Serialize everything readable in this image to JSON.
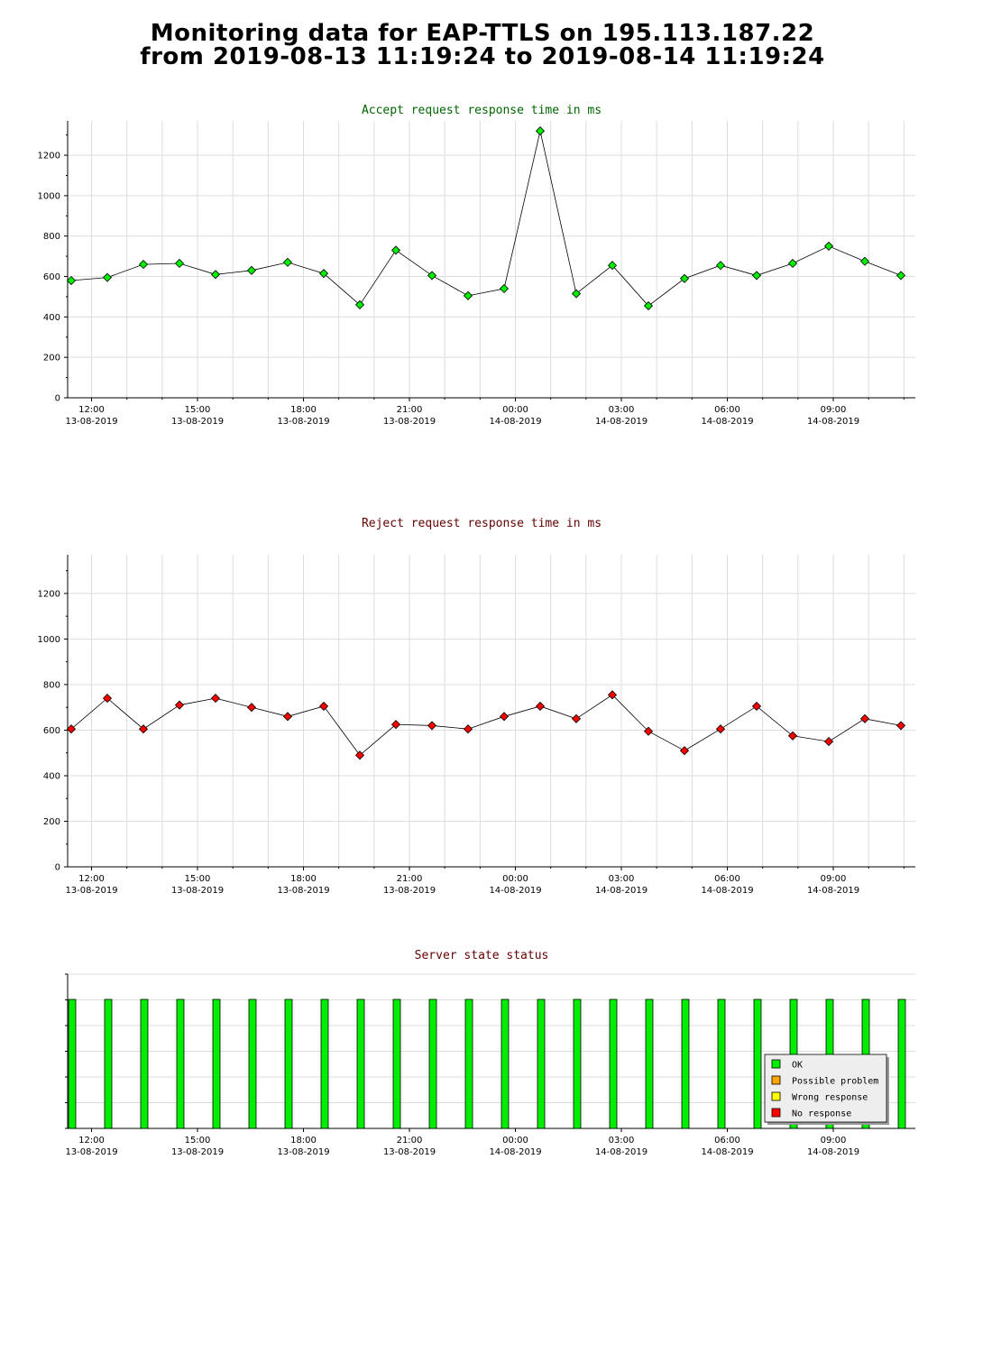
{
  "page": {
    "title_line1": "Monitoring data for EAP-TTLS on 195.113.187.22",
    "title_line2": "from 2019-08-13 11:19:24 to 2019-08-14 11:19:24"
  },
  "colors": {
    "accept_title": "#006400",
    "reject_title": "#640000",
    "status_title": "#640000",
    "accept_marker": "#00ee00",
    "reject_marker": "#ff0000",
    "ok": "#00ee00",
    "possible_problem": "#ffa500",
    "wrong_response": "#ffff00",
    "no_response": "#ff0000",
    "grid": "#dddddd"
  },
  "x_labels": [
    {
      "time": "12:00",
      "date": "13-08-2019"
    },
    {
      "time": "15:00",
      "date": "13-08-2019"
    },
    {
      "time": "18:00",
      "date": "13-08-2019"
    },
    {
      "time": "21:00",
      "date": "13-08-2019"
    },
    {
      "time": "00:00",
      "date": "14-08-2019"
    },
    {
      "time": "03:00",
      "date": "14-08-2019"
    },
    {
      "time": "06:00",
      "date": "14-08-2019"
    },
    {
      "time": "09:00",
      "date": "14-08-2019"
    }
  ],
  "chart_data": [
    {
      "type": "line",
      "title": "Accept request response time in ms",
      "x_range": [
        "2019-08-13 11:19:24",
        "2019-08-14 11:19:24"
      ],
      "x": [
        "11:30",
        "12:30",
        "13:30",
        "14:30",
        "15:30",
        "16:30",
        "17:30",
        "18:30",
        "19:30",
        "20:30",
        "21:30",
        "22:30",
        "23:30",
        "00:30",
        "01:30",
        "02:30",
        "03:30",
        "04:30",
        "05:30",
        "06:30",
        "07:30",
        "08:30",
        "09:30",
        "10:30"
      ],
      "values": [
        580,
        595,
        660,
        665,
        610,
        630,
        670,
        615,
        460,
        730,
        605,
        505,
        540,
        1320,
        515,
        655,
        455,
        590,
        655,
        605,
        665,
        750,
        675,
        605
      ],
      "ylim": [
        0,
        1370
      ],
      "yticks": [
        0,
        200,
        400,
        600,
        800,
        1000,
        1200
      ],
      "grid": true
    },
    {
      "type": "line",
      "title": "Reject request response time in ms",
      "x_range": [
        "2019-08-13 11:19:24",
        "2019-08-14 11:19:24"
      ],
      "x": [
        "11:30",
        "12:30",
        "13:30",
        "14:30",
        "15:30",
        "16:30",
        "17:30",
        "18:30",
        "19:30",
        "20:30",
        "21:30",
        "22:30",
        "23:30",
        "00:30",
        "01:30",
        "02:30",
        "03:30",
        "04:30",
        "05:30",
        "06:30",
        "07:30",
        "08:30",
        "09:30",
        "10:30"
      ],
      "values": [
        605,
        740,
        605,
        710,
        740,
        700,
        660,
        705,
        490,
        625,
        620,
        605,
        660,
        705,
        650,
        755,
        595,
        510,
        605,
        705,
        575,
        550,
        650,
        620
      ],
      "ylim": [
        0,
        1370
      ],
      "yticks": [
        0,
        200,
        400,
        600,
        800,
        1000,
        1200
      ],
      "grid": true
    },
    {
      "type": "bar",
      "title": "Server state status",
      "x": [
        "11:30",
        "12:30",
        "13:30",
        "14:30",
        "15:30",
        "16:30",
        "17:30",
        "18:30",
        "19:30",
        "20:30",
        "21:30",
        "22:30",
        "23:30",
        "00:30",
        "01:30",
        "02:30",
        "03:30",
        "04:30",
        "05:30",
        "06:30",
        "07:30",
        "08:30",
        "09:30",
        "10:30"
      ],
      "states": [
        "OK",
        "OK",
        "OK",
        "OK",
        "OK",
        "OK",
        "OK",
        "OK",
        "OK",
        "OK",
        "OK",
        "OK",
        "OK",
        "OK",
        "OK",
        "OK",
        "OK",
        "OK",
        "OK",
        "OK",
        "OK",
        "OK",
        "OK",
        "OK"
      ],
      "legend": [
        "OK",
        "Possible problem",
        "Wrong response",
        "No response"
      ],
      "legend_position": "bottom-right",
      "grid": true
    }
  ]
}
